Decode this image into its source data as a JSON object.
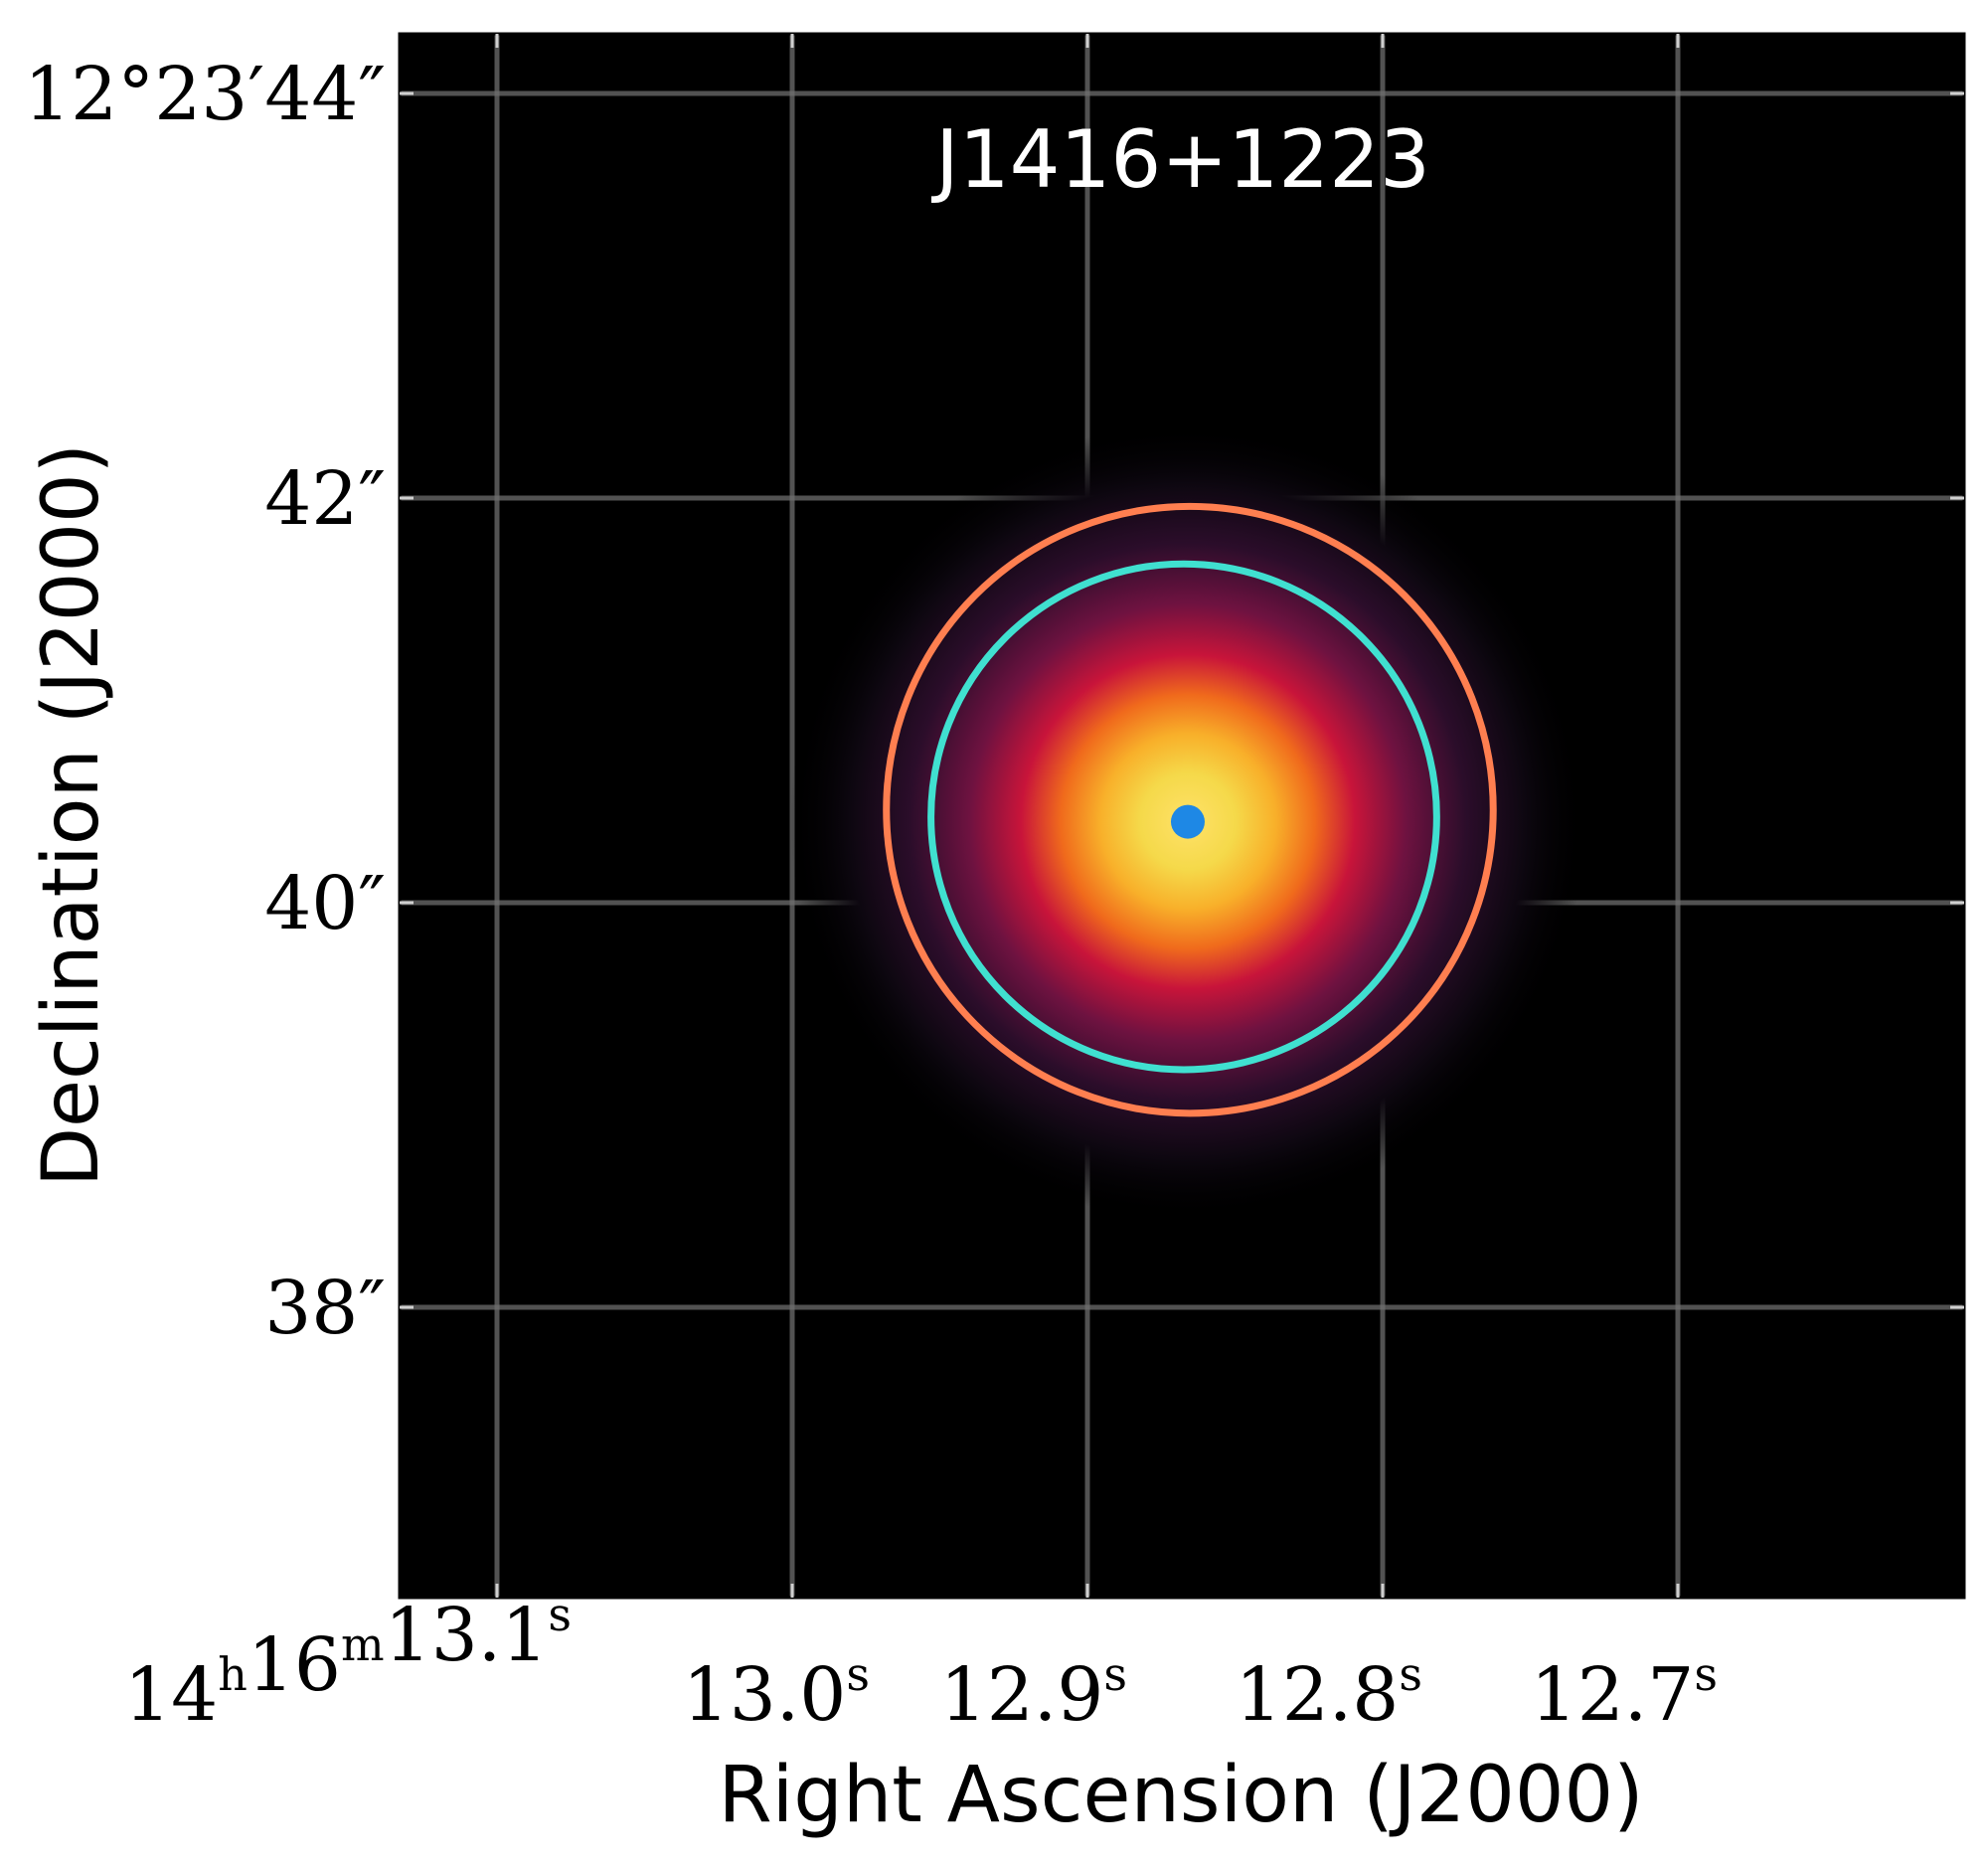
{
  "title": "J1416+1223",
  "xlabel": "Right Ascension (J2000)",
  "ylabel": "Declination (J2000)",
  "ra_ticks": [
    {
      "value_s": 13.1,
      "label_main": "14",
      "sup1": "h",
      "mid": "16",
      "sup2": "m",
      "sec": "13.1",
      "sup3": "s"
    },
    {
      "value_s": 13.0,
      "sec": "13.0",
      "sup3": "s"
    },
    {
      "value_s": 12.9,
      "sec": "12.9",
      "sup3": "s"
    },
    {
      "value_s": 12.8,
      "sec": "12.8",
      "sup3": "s"
    },
    {
      "value_s": 12.7,
      "sec": "12.7",
      "sup3": "s"
    }
  ],
  "dec_ticks": [
    {
      "value_arcsec": 44,
      "label": "12°23′44″"
    },
    {
      "value_arcsec": 42,
      "label": "42″"
    },
    {
      "value_arcsec": 40,
      "label": "40″"
    },
    {
      "value_arcsec": 38,
      "label": "38″"
    }
  ],
  "source": {
    "ra_s": 12.866,
    "dec_arcsec": 40.4
  },
  "apertures": [
    {
      "name": "outer-aperture",
      "color": "#ff7f50",
      "radius_arcsec": 1.5
    },
    {
      "name": "inner-aperture",
      "color": "#40e0d0",
      "radius_arcsec": 1.25
    }
  ],
  "colors": {
    "background": "#000000",
    "grid": "#6e6e6e",
    "peak": "#1e88e5"
  }
}
